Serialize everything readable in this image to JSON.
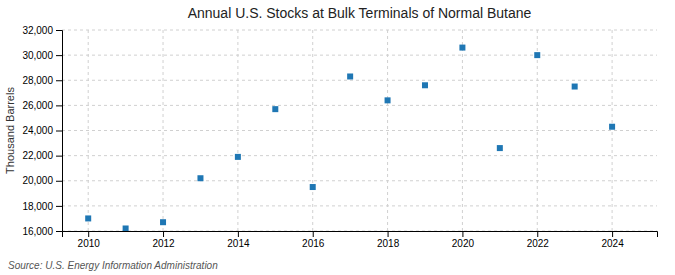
{
  "chart_data": {
    "type": "scatter",
    "title": "Annual U.S. Stocks at Bulk Terminals of Normal Butane",
    "ylabel": "Thousand Barrels",
    "source": "Source: U.S. Energy Information Administration",
    "x": [
      2010,
      2011,
      2012,
      2013,
      2014,
      2015,
      2016,
      2017,
      2018,
      2019,
      2020,
      2021,
      2022,
      2023,
      2024
    ],
    "values": [
      17000,
      16200,
      16700,
      20200,
      21900,
      25700,
      19500,
      28300,
      26400,
      27600,
      30600,
      22600,
      30000,
      27500,
      24300
    ],
    "marker": "square",
    "xlim": [
      2009.3,
      2025.2
    ],
    "xticks": [
      2010,
      2012,
      2014,
      2016,
      2018,
      2020,
      2022,
      2024
    ],
    "ylim": [
      16000,
      32000
    ],
    "yticks": [
      {
        "value": 16000,
        "label": "16,000"
      },
      {
        "value": 18000,
        "label": "18,000"
      },
      {
        "value": 20000,
        "label": "20,000"
      },
      {
        "value": 22000,
        "label": "22,000"
      },
      {
        "value": 24000,
        "label": "24,000"
      },
      {
        "value": 26000,
        "label": "26,000"
      },
      {
        "value": 28000,
        "label": "28,000"
      },
      {
        "value": 30000,
        "label": "30,000"
      },
      {
        "value": 32000,
        "label": "32,000"
      }
    ],
    "grid": true
  }
}
